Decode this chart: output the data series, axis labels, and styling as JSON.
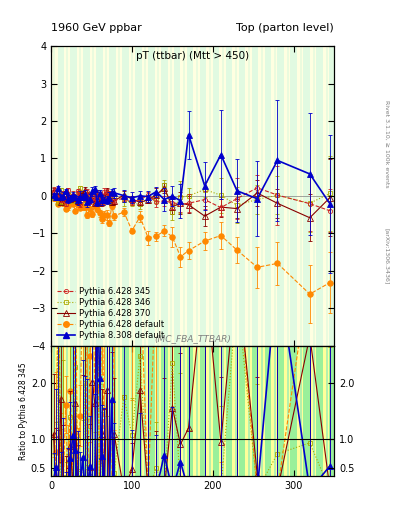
{
  "title_left": "1960 GeV ppbar",
  "title_right": "Top (parton level)",
  "main_title": "pT (ttbar) (Mtt > 450)",
  "annotation": "(MC_FBA_TTBAR)",
  "right_label": "Rivet 3.1.10, ≥ 100k events",
  "arxiv_label": "[arXiv:1306.3436]",
  "ylabel_ratio": "Ratio to Pythia 6.428 345",
  "ylim_main": [
    -4,
    4
  ],
  "ylim_ratio": [
    0.35,
    2.65
  ],
  "xlim": [
    0,
    350
  ],
  "xticks": [
    0,
    100,
    200,
    300
  ],
  "yticks_main": [
    -4,
    -3,
    -2,
    -1,
    0,
    1,
    2,
    3,
    4
  ],
  "ratio_yticks": [
    0.5,
    1,
    2
  ],
  "series": [
    {
      "label": "Pythia 6.428 345",
      "color": "#cc2222",
      "marker": "o",
      "markersize": 3,
      "linestyle": "--",
      "fillstyle": "none",
      "linewidth": 0.8
    },
    {
      "label": "Pythia 6.428 346",
      "color": "#aaaa00",
      "marker": "s",
      "markersize": 3,
      "linestyle": ":",
      "fillstyle": "none",
      "linewidth": 0.8
    },
    {
      "label": "Pythia 6.428 370",
      "color": "#880000",
      "marker": "^",
      "markersize": 4,
      "linestyle": "-",
      "fillstyle": "none",
      "linewidth": 0.8
    },
    {
      "label": "Pythia 6.428 default",
      "color": "#ff8800",
      "marker": "o",
      "markersize": 4,
      "linestyle": "--",
      "fillstyle": "full",
      "linewidth": 0.8
    },
    {
      "label": "Pythia 8.308 default",
      "color": "#0000cc",
      "marker": "^",
      "markersize": 4,
      "linestyle": "-",
      "fillstyle": "full",
      "linewidth": 1.2
    }
  ]
}
